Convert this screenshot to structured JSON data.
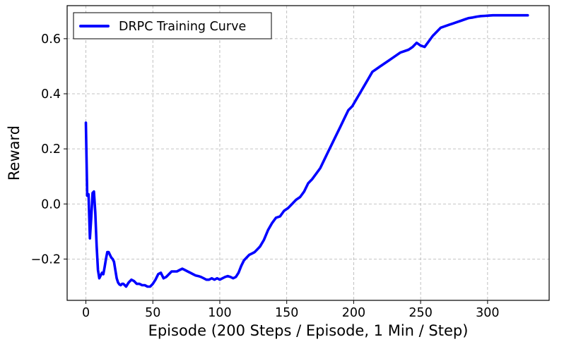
{
  "colors": {
    "series": "#0000ff",
    "grid": "#b0b0b0",
    "axis": "#000000",
    "legend_border": "#000000"
  },
  "chart_data": {
    "type": "line",
    "title": "",
    "xlabel": "Episode (200 Steps / Episode, 1 Min / Step)",
    "ylabel": "Reward",
    "xlim": [
      -14,
      346
    ],
    "ylim": [
      -0.35,
      0.72
    ],
    "xticks": [
      0,
      50,
      100,
      150,
      200,
      250,
      300
    ],
    "yticks": [
      -0.2,
      0.0,
      0.2,
      0.4,
      0.6
    ],
    "xtick_labels": [
      "0",
      "50",
      "100",
      "150",
      "200",
      "250",
      "300"
    ],
    "ytick_labels": [
      "−0.2",
      "0.0",
      "0.2",
      "0.4",
      "0.6"
    ],
    "grid": true,
    "legend_position": "top-left",
    "series": [
      {
        "name": "DRPC Training Curve",
        "x": [
          0,
          1,
          2,
          3,
          4,
          5,
          6,
          7,
          8,
          9,
          10,
          11,
          12,
          13,
          14,
          15,
          16,
          17,
          18,
          19,
          20,
          21,
          22,
          23,
          24,
          25,
          26,
          27,
          28,
          29,
          30,
          32,
          34,
          36,
          38,
          40,
          42,
          44,
          46,
          48,
          50,
          52,
          54,
          56,
          58,
          60,
          62,
          64,
          66,
          68,
          70,
          72,
          74,
          76,
          78,
          80,
          82,
          84,
          86,
          88,
          90,
          92,
          94,
          96,
          98,
          100,
          102,
          104,
          106,
          108,
          110,
          112,
          114,
          116,
          118,
          120,
          122,
          124,
          126,
          128,
          130,
          133,
          136,
          139,
          142,
          145,
          148,
          151,
          154,
          157,
          160,
          163,
          166,
          169,
          172,
          175,
          178,
          181,
          184,
          187,
          190,
          193,
          196,
          199,
          202,
          205,
          208,
          211,
          214,
          217,
          220,
          223,
          226,
          229,
          232,
          235,
          238,
          241,
          244,
          247,
          250,
          253,
          256,
          259,
          262,
          265,
          268,
          271,
          274,
          277,
          280,
          283,
          286,
          289,
          292,
          295,
          298,
          301,
          304,
          307,
          310,
          313,
          316,
          319,
          322,
          325,
          328,
          330
        ],
        "y": [
          0.295,
          0.03,
          0.035,
          -0.125,
          -0.05,
          0.04,
          0.045,
          -0.03,
          -0.15,
          -0.24,
          -0.27,
          -0.26,
          -0.25,
          -0.255,
          -0.23,
          -0.2,
          -0.175,
          -0.175,
          -0.185,
          -0.195,
          -0.2,
          -0.21,
          -0.24,
          -0.27,
          -0.285,
          -0.292,
          -0.295,
          -0.29,
          -0.29,
          -0.295,
          -0.3,
          -0.285,
          -0.275,
          -0.28,
          -0.29,
          -0.29,
          -0.295,
          -0.295,
          -0.3,
          -0.3,
          -0.29,
          -0.275,
          -0.255,
          -0.25,
          -0.27,
          -0.265,
          -0.255,
          -0.245,
          -0.245,
          -0.245,
          -0.24,
          -0.235,
          -0.24,
          -0.245,
          -0.25,
          -0.255,
          -0.26,
          -0.262,
          -0.265,
          -0.27,
          -0.275,
          -0.275,
          -0.27,
          -0.275,
          -0.27,
          -0.275,
          -0.27,
          -0.265,
          -0.262,
          -0.265,
          -0.27,
          -0.265,
          -0.25,
          -0.225,
          -0.205,
          -0.195,
          -0.185,
          -0.18,
          -0.175,
          -0.165,
          -0.155,
          -0.13,
          -0.095,
          -0.07,
          -0.05,
          -0.045,
          -0.025,
          -0.015,
          0.0,
          0.015,
          0.025,
          0.045,
          0.075,
          0.09,
          0.11,
          0.13,
          0.16,
          0.19,
          0.22,
          0.25,
          0.28,
          0.31,
          0.34,
          0.355,
          0.38,
          0.405,
          0.43,
          0.455,
          0.48,
          0.49,
          0.5,
          0.51,
          0.52,
          0.53,
          0.54,
          0.55,
          0.555,
          0.56,
          0.57,
          0.585,
          0.575,
          0.57,
          0.59,
          0.61,
          0.625,
          0.64,
          0.645,
          0.65,
          0.655,
          0.66,
          0.665,
          0.67,
          0.675,
          0.677,
          0.68,
          0.682,
          0.683,
          0.684,
          0.685,
          0.685,
          0.685,
          0.685,
          0.685,
          0.685,
          0.685,
          0.685,
          0.685,
          0.685
        ]
      }
    ]
  }
}
